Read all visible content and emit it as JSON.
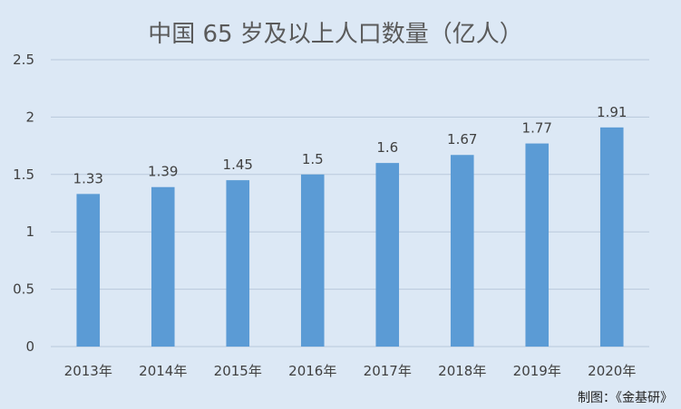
{
  "chart_data": {
    "type": "bar",
    "title": "中国 65 岁及以上人口数量（亿人）",
    "categories": [
      "2013年",
      "2014年",
      "2015年",
      "2016年",
      "2017年",
      "2018年",
      "2019年",
      "2020年"
    ],
    "values": [
      1.33,
      1.39,
      1.45,
      1.5,
      1.6,
      1.67,
      1.77,
      1.91
    ],
    "value_labels": [
      "1.33",
      "1.39",
      "1.45",
      "1.5",
      "1.6",
      "1.67",
      "1.77",
      "1.91"
    ],
    "ylim": [
      0,
      2.5
    ],
    "yticks": [
      0,
      0.5,
      1,
      1.5,
      2,
      2.5
    ],
    "ytick_labels": [
      "0",
      "0.5",
      "1",
      "1.5",
      "2",
      "2.5"
    ],
    "xlabel": "",
    "ylabel": "",
    "grid": true,
    "bar_color": "#5b9bd5",
    "grid_color": "#b9c9db",
    "background_color": "#dce8f5"
  },
  "credit": "制图：《金基研》"
}
